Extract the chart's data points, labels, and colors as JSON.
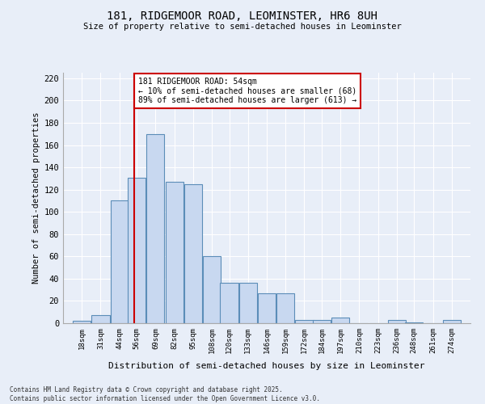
{
  "title1": "181, RIDGEMOOR ROAD, LEOMINSTER, HR6 8UH",
  "title2": "Size of property relative to semi-detached houses in Leominster",
  "xlabel": "Distribution of semi-detached houses by size in Leominster",
  "ylabel": "Number of semi-detached properties",
  "bins": [
    18,
    31,
    44,
    56,
    69,
    82,
    95,
    108,
    120,
    133,
    146,
    159,
    172,
    184,
    197,
    210,
    223,
    236,
    248,
    261,
    274
  ],
  "heights": [
    2,
    7,
    110,
    131,
    170,
    127,
    125,
    60,
    36,
    36,
    27,
    27,
    3,
    3,
    5,
    0,
    0,
    3,
    1,
    0,
    3
  ],
  "bar_color": "#c8d8f0",
  "bar_edge_color": "#5b8db8",
  "vline_x": 54,
  "vline_color": "#cc0000",
  "annotation_title": "181 RIDGEMOOR ROAD: 54sqm",
  "annotation_line1": "← 10% of semi-detached houses are smaller (68)",
  "annotation_line2": "89% of semi-detached houses are larger (613) →",
  "annotation_box_color": "#cc0000",
  "ylim": [
    0,
    225
  ],
  "yticks": [
    0,
    20,
    40,
    60,
    80,
    100,
    120,
    140,
    160,
    180,
    200,
    220
  ],
  "footer1": "Contains HM Land Registry data © Crown copyright and database right 2025.",
  "footer2": "Contains public sector information licensed under the Open Government Licence v3.0.",
  "bg_color": "#e8eef8"
}
